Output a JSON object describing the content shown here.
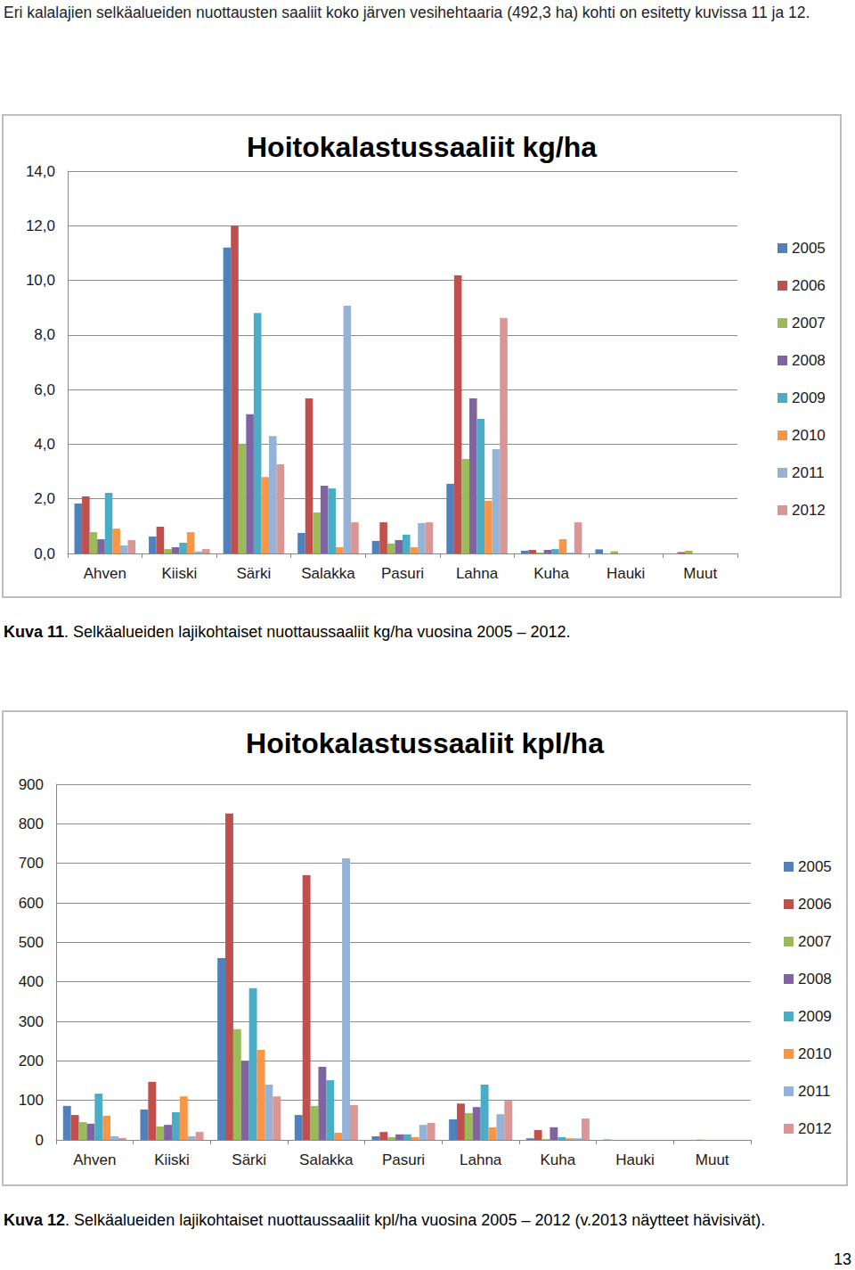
{
  "page": {
    "intro": "Eri kalalajien selkäalueiden nuottausten saaliit koko järven vesihehtaaria (492,3 ha) kohti on esitetty kuvissa 11 ja 12.",
    "page_number": "13"
  },
  "chart_data": [
    {
      "type": "bar",
      "title": "Hoitokalastussaaliit kg/ha",
      "caption": {
        "label": "Kuva 11",
        "text": ". Selkäalueiden lajikohtaiset nuottaussaaliit kg/ha vuosina 2005 – 2012."
      },
      "categories": [
        "Ahven",
        "Kiiski",
        "Särki",
        "Salakka",
        "Pasuri",
        "Lahna",
        "Kuha",
        "Hauki",
        "Muut"
      ],
      "series": [
        {
          "name": "2005",
          "color": "#4F81BD",
          "values": [
            1.83,
            0.62,
            11.2,
            0.75,
            0.46,
            2.55,
            0.1,
            0.15,
            0
          ]
        },
        {
          "name": "2006",
          "color": "#C0504D",
          "values": [
            2.09,
            0.98,
            12.0,
            5.68,
            1.14,
            10.18,
            0.13,
            0,
            0.05
          ]
        },
        {
          "name": "2007",
          "color": "#9BBB59",
          "values": [
            0.78,
            0.16,
            4.0,
            1.5,
            0.36,
            3.46,
            0.03,
            0.08,
            0.1
          ]
        },
        {
          "name": "2008",
          "color": "#8064A2",
          "values": [
            0.52,
            0.23,
            5.1,
            2.48,
            0.49,
            5.68,
            0.13,
            0,
            0
          ]
        },
        {
          "name": "2009",
          "color": "#4BACC6",
          "values": [
            2.22,
            0.39,
            8.8,
            2.38,
            0.69,
            4.93,
            0.16,
            0,
            0
          ]
        },
        {
          "name": "2010",
          "color": "#F79646",
          "values": [
            0.91,
            0.78,
            2.8,
            0.23,
            0.23,
            1.93,
            0.52,
            0,
            0
          ]
        },
        {
          "name": "2011",
          "color": "#95B3D7",
          "values": [
            0.29,
            0.07,
            4.3,
            9.07,
            1.11,
            3.82,
            0.03,
            0,
            0
          ]
        },
        {
          "name": "2012",
          "color": "#DA9694",
          "values": [
            0.49,
            0.16,
            3.26,
            1.14,
            1.14,
            8.62,
            1.14,
            0,
            0
          ]
        }
      ],
      "ylim": [
        0,
        14
      ],
      "yticks": [
        {
          "value": 0,
          "label": "0,0"
        },
        {
          "value": 2,
          "label": "2,0"
        },
        {
          "value": 4,
          "label": "4,0"
        },
        {
          "value": 6,
          "label": "6,0"
        },
        {
          "value": 8,
          "label": "8,0"
        },
        {
          "value": 10,
          "label": "10,0"
        },
        {
          "value": 12,
          "label": "12,0"
        },
        {
          "value": 14,
          "label": "14,0"
        }
      ],
      "grid": true,
      "legend": "right"
    },
    {
      "type": "bar",
      "title": "Hoitokalastussaaliit kpl/ha",
      "caption": {
        "label": "Kuva 12",
        "text": ". Selkäalueiden lajikohtaiset nuottaussaaliit kpl/ha vuosina 2005 – 2012 (v.2013 näytteet hävisivät)."
      },
      "categories": [
        "Ahven",
        "Kiiski",
        "Särki",
        "Salakka",
        "Pasuri",
        "Lahna",
        "Kuha",
        "Hauki",
        "Muut"
      ],
      "series": [
        {
          "name": "2005",
          "color": "#4F81BD",
          "values": [
            86,
            77,
            460,
            63,
            9,
            52,
            4,
            1,
            0
          ]
        },
        {
          "name": "2006",
          "color": "#C0504D",
          "values": [
            63,
            147,
            826,
            670,
            20,
            92,
            25,
            0,
            0
          ]
        },
        {
          "name": "2007",
          "color": "#9BBB59",
          "values": [
            45,
            34,
            280,
            86,
            7,
            68,
            2,
            0,
            1
          ]
        },
        {
          "name": "2008",
          "color": "#8064A2",
          "values": [
            41,
            38,
            199,
            185,
            14,
            83,
            32,
            0,
            0
          ]
        },
        {
          "name": "2009",
          "color": "#4BACC6",
          "values": [
            117,
            70,
            384,
            151,
            14,
            140,
            7,
            0,
            0
          ]
        },
        {
          "name": "2010",
          "color": "#F79646",
          "values": [
            61,
            110,
            228,
            18,
            7,
            32,
            4,
            0,
            0
          ]
        },
        {
          "name": "2011",
          "color": "#95B3D7",
          "values": [
            9,
            9,
            140,
            713,
            38,
            65,
            4,
            0,
            0
          ]
        },
        {
          "name": "2012",
          "color": "#DA9694",
          "values": [
            5,
            20,
            110,
            88,
            43,
            99,
            54,
            0,
            0
          ]
        }
      ],
      "ylim": [
        0,
        900
      ],
      "yticks": [
        0,
        100,
        200,
        300,
        400,
        500,
        600,
        700,
        800,
        900
      ],
      "grid": true,
      "legend": "right"
    }
  ]
}
